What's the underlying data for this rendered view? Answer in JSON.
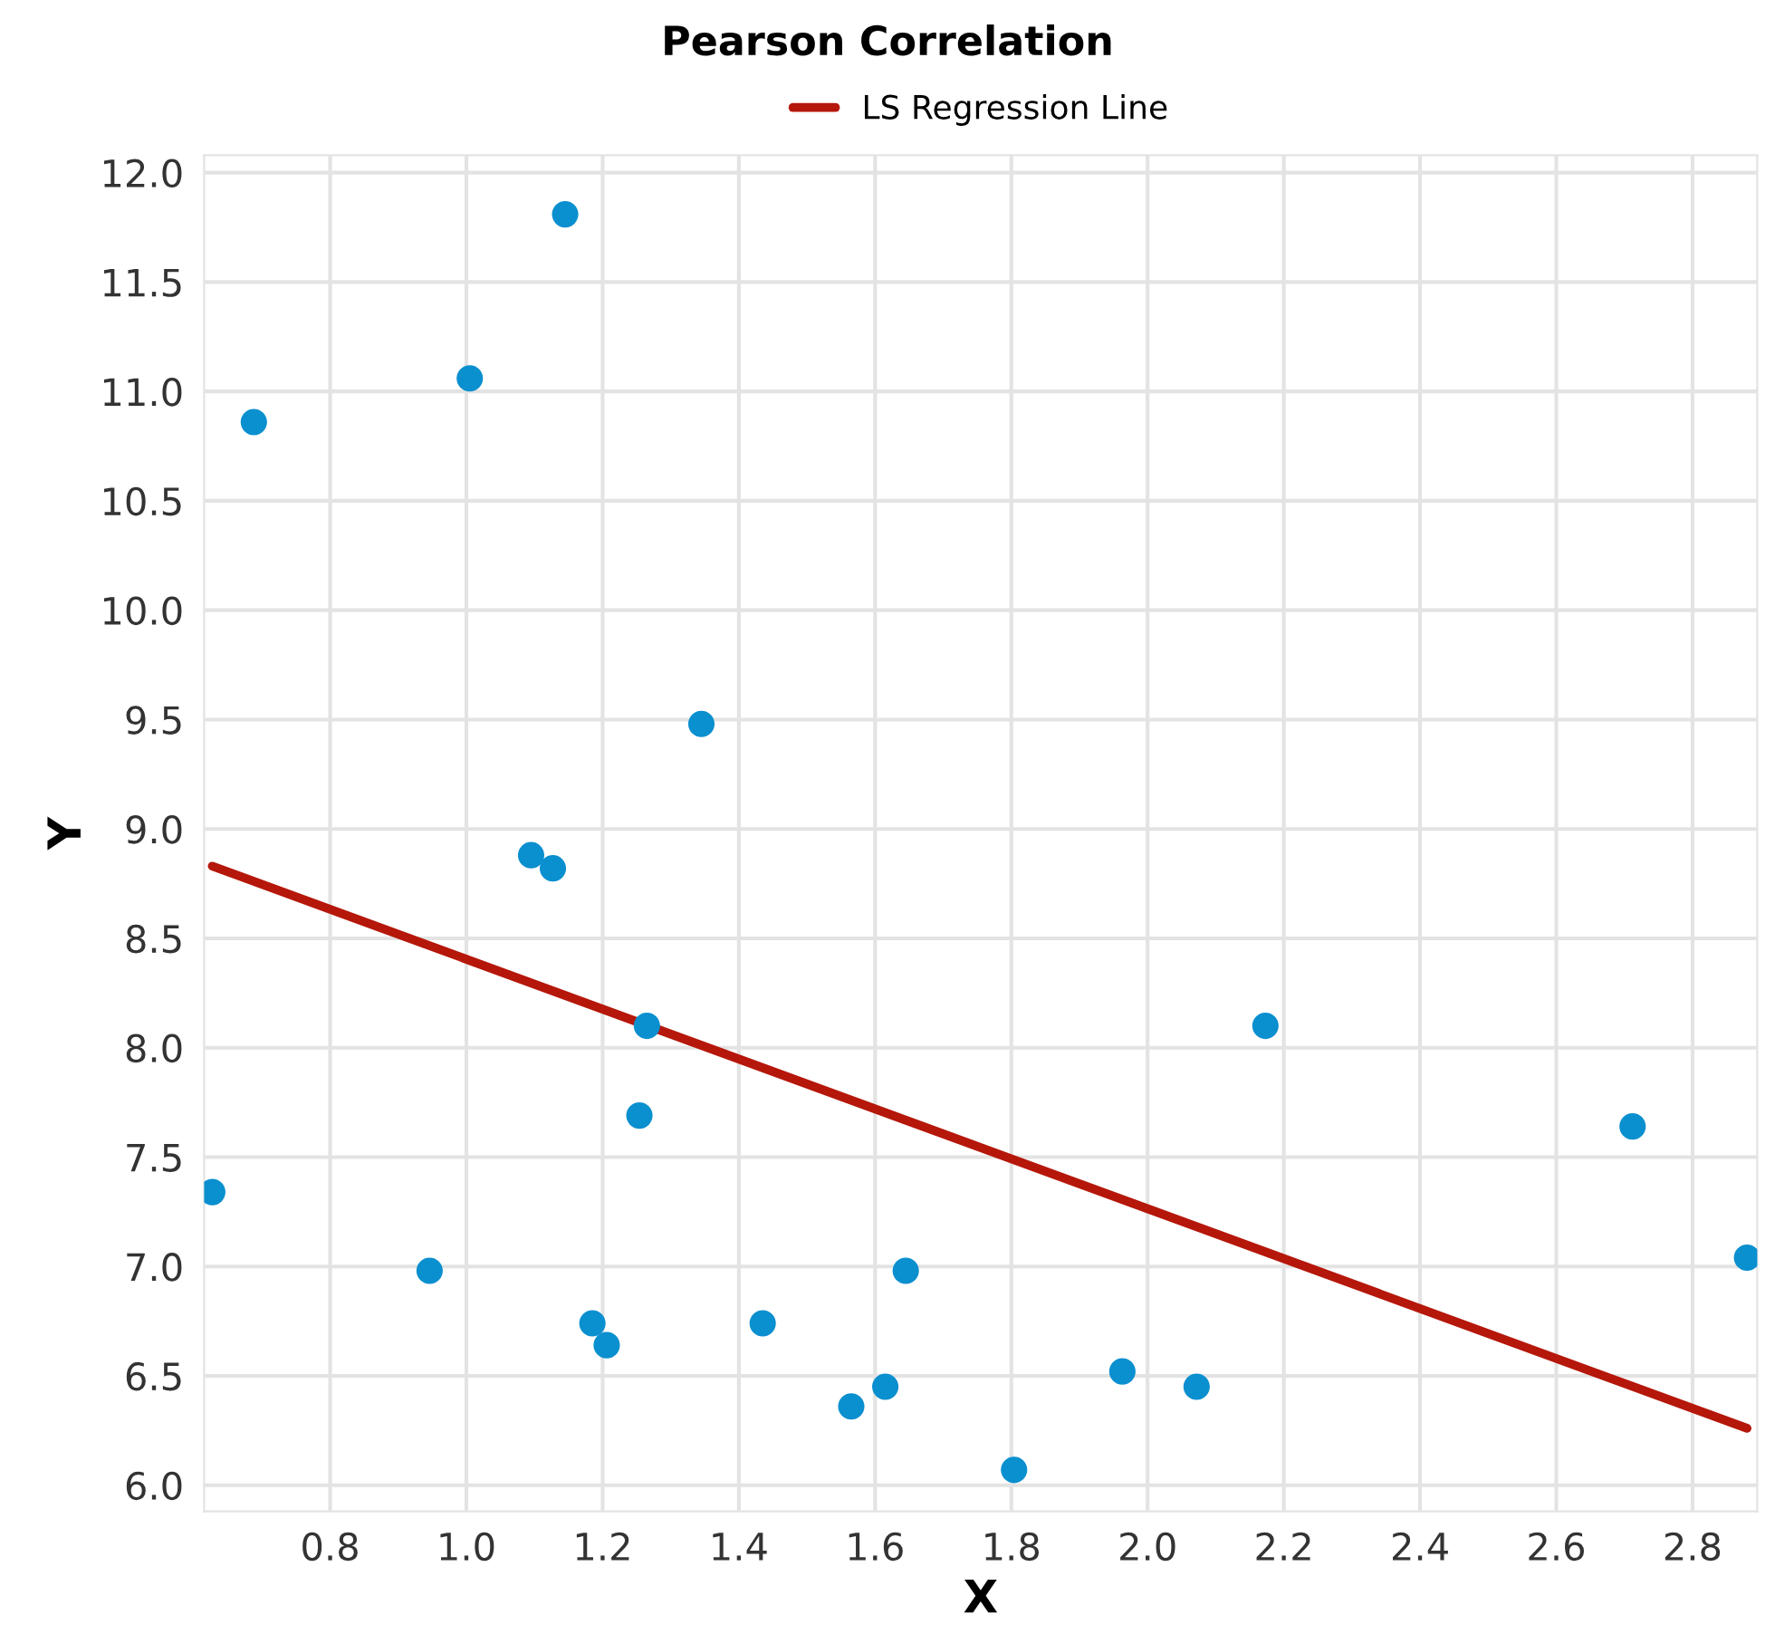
{
  "chart_data": {
    "type": "scatter",
    "title": "Pearson Correlation",
    "xlabel": "X",
    "ylabel": "Y",
    "series": [
      {
        "marker": "circle",
        "color": "#0a8fcf",
        "x": [
          0.627,
          0.688,
          1.005,
          1.145,
          0.946,
          1.095,
          1.127,
          1.345,
          1.265,
          1.254,
          1.185,
          1.206,
          1.435,
          1.565,
          1.615,
          1.645,
          1.804,
          1.963,
          2.072,
          2.173,
          2.712,
          2.88
        ],
        "values": [
          7.34,
          10.86,
          11.06,
          11.81,
          6.98,
          8.88,
          8.82,
          9.48,
          8.1,
          7.69,
          6.74,
          6.64,
          6.74,
          6.36,
          6.45,
          6.98,
          6.07,
          6.52,
          6.45,
          8.1,
          7.64,
          7.04
        ]
      },
      {
        "type": "line",
        "name": "LS Regression Line",
        "color": "#b5170b",
        "x": [
          0.627,
          2.88
        ],
        "values": [
          8.83,
          6.26
        ]
      }
    ],
    "xlim": [
      0.615,
      2.895
    ],
    "ylim": [
      5.88,
      12.08
    ],
    "xticks": [
      {
        "value": 0.8,
        "label": "0.8"
      },
      {
        "value": 1.0,
        "label": "1.0"
      },
      {
        "value": 1.2,
        "label": "1.2"
      },
      {
        "value": 1.4,
        "label": "1.4"
      },
      {
        "value": 1.6,
        "label": "1.6"
      },
      {
        "value": 1.8,
        "label": "1.8"
      },
      {
        "value": 2.0,
        "label": "2.0"
      },
      {
        "value": 2.2,
        "label": "2.2"
      },
      {
        "value": 2.4,
        "label": "2.4"
      },
      {
        "value": 2.6,
        "label": "2.6"
      },
      {
        "value": 2.8,
        "label": "2.8"
      }
    ],
    "yticks": [
      {
        "value": 6.0,
        "label": "6.0"
      },
      {
        "value": 6.5,
        "label": "6.5"
      },
      {
        "value": 7.0,
        "label": "7.0"
      },
      {
        "value": 7.5,
        "label": "7.5"
      },
      {
        "value": 8.0,
        "label": "8.0"
      },
      {
        "value": 8.5,
        "label": "8.5"
      },
      {
        "value": 9.0,
        "label": "9.0"
      },
      {
        "value": 9.5,
        "label": "9.5"
      },
      {
        "value": 10.0,
        "label": "10.0"
      },
      {
        "value": 10.5,
        "label": "10.5"
      },
      {
        "value": 11.0,
        "label": "11.0"
      },
      {
        "value": 11.5,
        "label": "11.5"
      },
      {
        "value": 12.0,
        "label": "12.0"
      }
    ],
    "grid": true,
    "legend": "top",
    "line_style": "solid"
  }
}
